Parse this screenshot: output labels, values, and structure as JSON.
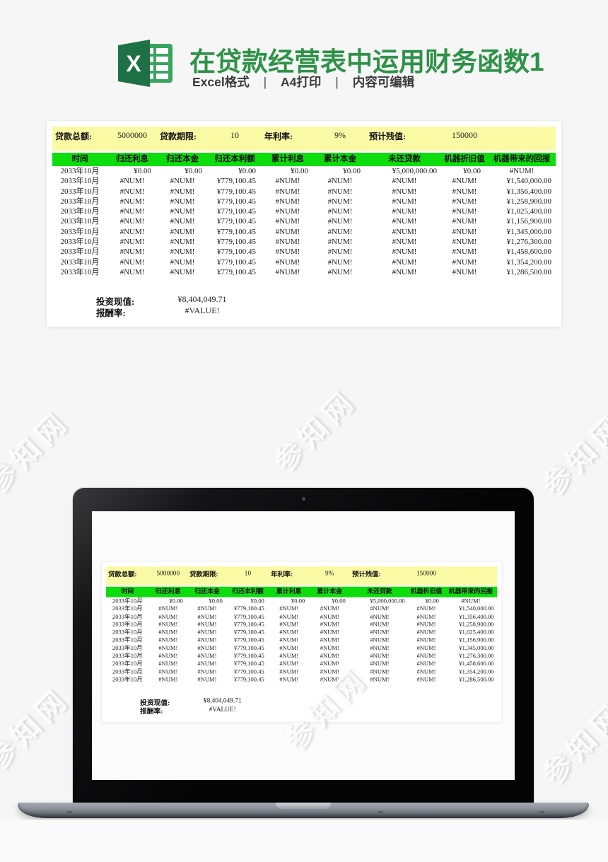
{
  "header": {
    "title": "在贷款经营表中运用财务函数1",
    "title_color": "#2e9247",
    "subtitle_parts": {
      "format": "Excel格式",
      "print": "A4打印",
      "editable": "内容可编辑"
    },
    "separator": "|",
    "logo_icon": "excel-logo"
  },
  "sheet": {
    "colors": {
      "param_band": "#fafaa5",
      "header_band": "#0ddd0d"
    },
    "params": [
      {
        "label": "贷款总额:",
        "value": "5000000"
      },
      {
        "label": "贷款期限:",
        "value": "10"
      },
      {
        "label": "年利率:",
        "value": "9%"
      },
      {
        "label": "预计残值:",
        "value": "150000"
      }
    ],
    "columns": [
      "时间",
      "归还利息",
      "归还本金",
      "归还本利额",
      "累计利息",
      "累计本金",
      "未还贷款",
      "机器折旧值",
      "机器带来的回报"
    ],
    "rows": [
      [
        "2033年10月",
        "¥0.00",
        "¥0.00",
        "¥0.00",
        "¥0.00",
        "¥0.00",
        "¥5,000,000.00",
        "¥0.00",
        "#NUM!"
      ],
      [
        "2033年10月",
        "#NUM!",
        "#NUM!",
        "¥779,100.45",
        "#NUM!",
        "#NUM!",
        "#NUM!",
        "#NUM!",
        "¥1,540,000.00"
      ],
      [
        "2033年10月",
        "#NUM!",
        "#NUM!",
        "¥779,100.45",
        "#NUM!",
        "#NUM!",
        "#NUM!",
        "#NUM!",
        "¥1,356,400.00"
      ],
      [
        "2033年10月",
        "#NUM!",
        "#NUM!",
        "¥779,100.45",
        "#NUM!",
        "#NUM!",
        "#NUM!",
        "#NUM!",
        "¥1,258,900.00"
      ],
      [
        "2033年10月",
        "#NUM!",
        "#NUM!",
        "¥779,100.45",
        "#NUM!",
        "#NUM!",
        "#NUM!",
        "#NUM!",
        "¥1,025,400.00"
      ],
      [
        "2033年10月",
        "#NUM!",
        "#NUM!",
        "¥779,100.45",
        "#NUM!",
        "#NUM!",
        "#NUM!",
        "#NUM!",
        "¥1,156,900.00"
      ],
      [
        "2033年10月",
        "#NUM!",
        "#NUM!",
        "¥779,100.45",
        "#NUM!",
        "#NUM!",
        "#NUM!",
        "#NUM!",
        "¥1,345,000.00"
      ],
      [
        "2033年10月",
        "#NUM!",
        "#NUM!",
        "¥779,100.45",
        "#NUM!",
        "#NUM!",
        "#NUM!",
        "#NUM!",
        "¥1,276,300.00"
      ],
      [
        "2033年10月",
        "#NUM!",
        "#NUM!",
        "¥779,100.45",
        "#NUM!",
        "#NUM!",
        "#NUM!",
        "#NUM!",
        "¥1,458,600.00"
      ],
      [
        "2033年10月",
        "#NUM!",
        "#NUM!",
        "¥779,100.45",
        "#NUM!",
        "#NUM!",
        "#NUM!",
        "#NUM!",
        "¥1,354,200.00"
      ],
      [
        "2033年10月",
        "#NUM!",
        "#NUM!",
        "¥779,100.45",
        "#NUM!",
        "#NUM!",
        "#NUM!",
        "#NUM!",
        "¥1,286,500.00"
      ]
    ],
    "summary": [
      {
        "label": "投资现值:",
        "value": "¥8,404,049.71"
      },
      {
        "label": "报酬率:",
        "value": "#VALUE!"
      }
    ]
  },
  "watermark": {
    "text": "参知网"
  }
}
